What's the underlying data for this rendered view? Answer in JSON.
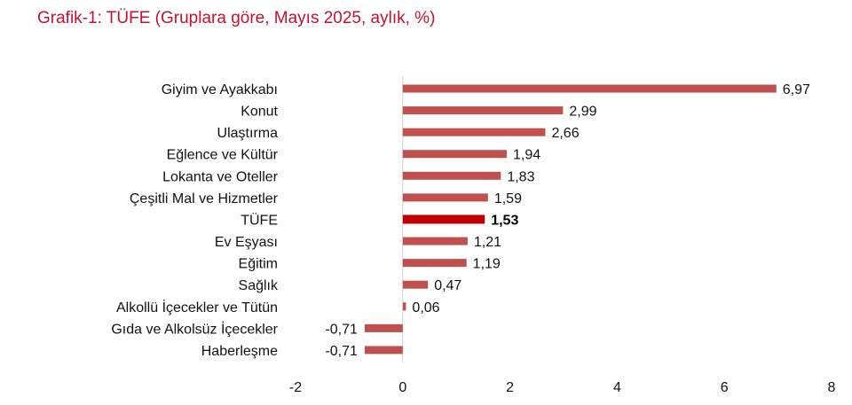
{
  "title": "Grafik-1: TÜFE (Gruplara göre, Mayıs 2025, aylık, %)",
  "colors": {
    "title": "#c8102e",
    "bar": "#c0504d",
    "highlight_bar": "#c00000",
    "axis": "#d0d0d0"
  },
  "chart_data": {
    "type": "bar",
    "orientation": "horizontal",
    "title": "Grafik-1: TÜFE (Gruplara göre, Mayıs 2025, aylık, %)",
    "categories": [
      "Giyim ve Ayakkabı",
      "Konut",
      "Ulaştırma",
      "Eğlence ve Kültür",
      "Lokanta ve Oteller",
      "Çeşitli Mal ve Hizmetler",
      "TÜFE",
      "Ev Eşyası",
      "Eğitim",
      "Sağlık",
      "Alkollü İçecekler ve Tütün",
      "Gıda ve Alkolsüz İçecekler",
      "Haberleşme"
    ],
    "values": [
      6.97,
      2.99,
      2.66,
      1.94,
      1.83,
      1.59,
      1.53,
      1.21,
      1.19,
      0.47,
      0.06,
      -0.71,
      -0.71
    ],
    "value_labels": [
      "6,97",
      "2,99",
      "2,66",
      "1,94",
      "1,83",
      "1,59",
      "1,53",
      "1,21",
      "1,19",
      "0,47",
      "0,06",
      "-0,71",
      "-0,71"
    ],
    "highlight": "TÜFE",
    "xlim": [
      -2,
      8
    ],
    "xticks": [
      -2,
      0,
      2,
      4,
      6,
      8
    ],
    "xtick_labels": [
      "-2",
      "0",
      "2",
      "4",
      "6",
      "8"
    ],
    "grid": false,
    "legend": "none"
  }
}
